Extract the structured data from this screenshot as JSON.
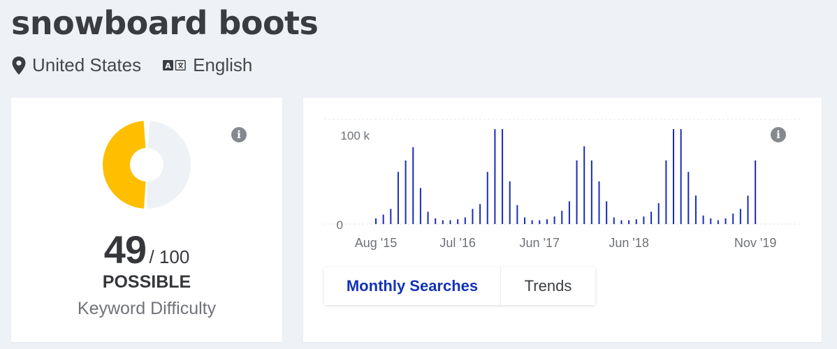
{
  "header": {
    "title": "snowboard boots",
    "location": "United States",
    "language": "English"
  },
  "difficulty": {
    "score": "49",
    "max": "/ 100",
    "value": 49,
    "max_value": 100,
    "label": "POSSIBLE",
    "subtitle": "Keyword Difficulty",
    "fill_color": "#ffbe00",
    "track_color": "#eef1f5",
    "info_icon": "i"
  },
  "searches": {
    "info_icon": "i",
    "tabs": [
      {
        "label": "Monthly Searches",
        "active": true
      },
      {
        "label": "Trends",
        "active": false
      }
    ],
    "bar_color": "#1a2bb5"
  },
  "chart_data": {
    "type": "bar",
    "ylim": [
      0,
      100000
    ],
    "yticks": [
      "0",
      "100 k"
    ],
    "x_tick_labels": [
      "Aug '15",
      "Jul '16",
      "Jun '17",
      "Jun '18",
      "Nov '19"
    ],
    "x_tick_indices": [
      0,
      11,
      22,
      34,
      51
    ],
    "categories": [
      "Aug '15",
      "Sep '15",
      "Oct '15",
      "Nov '15",
      "Dec '15",
      "Jan '16",
      "Feb '16",
      "Mar '16",
      "Apr '16",
      "May '16",
      "Jun '16",
      "Jul '16",
      "Aug '16",
      "Sep '16",
      "Oct '16",
      "Nov '16",
      "Dec '16",
      "Jan '17",
      "Feb '17",
      "Mar '17",
      "Apr '17",
      "May '17",
      "Jun '17",
      "Jul '17",
      "Aug '17",
      "Sep '17",
      "Oct '17",
      "Nov '17",
      "Dec '17",
      "Jan '18",
      "Feb '18",
      "Mar '18",
      "Apr '18",
      "May '18",
      "Jun '18",
      "Jul '18",
      "Aug '18",
      "Sep '18",
      "Oct '18",
      "Nov '18",
      "Dec '18",
      "Jan '19",
      "Feb '19",
      "Mar '19",
      "Apr '19",
      "May '19",
      "Jun '19",
      "Jul '19",
      "Aug '19",
      "Sep '19",
      "Oct '19",
      "Nov '19"
    ],
    "values": [
      6000,
      10000,
      16000,
      55000,
      67000,
      81000,
      38000,
      13000,
      6000,
      4000,
      4000,
      5000,
      7000,
      16000,
      21000,
      55000,
      100000,
      100000,
      45000,
      20000,
      7000,
      4000,
      4000,
      5000,
      8000,
      14000,
      24000,
      67000,
      82000,
      67000,
      45000,
      24000,
      7000,
      4000,
      4000,
      5000,
      8000,
      13000,
      22000,
      67000,
      100000,
      100000,
      55000,
      30000,
      9000,
      6000,
      4000,
      6000,
      11000,
      16000,
      30000,
      67000
    ]
  }
}
